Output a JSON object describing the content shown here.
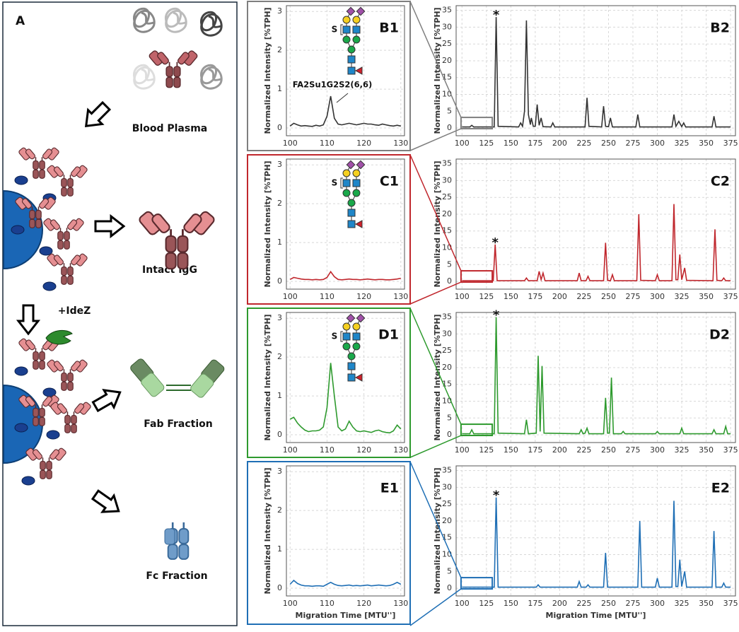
{
  "diagram": {
    "panel": "A",
    "labels": [
      "Blood Plasma",
      "Intact IgG",
      "+IdeZ",
      "Fab Fraction",
      "Fc Fraction"
    ]
  },
  "chart_data": [
    {
      "type": "line",
      "label": "B1",
      "ylabel": "Normalized Intensity [%TPH]",
      "frame_color": "#7f7f7f",
      "glycan": {
        "sulfate": "S",
        "name": "FA2Su1G2S2(6,6)"
      },
      "xlim": [
        99,
        131
      ],
      "ylim": [
        -0.2,
        3.15
      ],
      "xticks": [
        100,
        110,
        120,
        130
      ],
      "yticks": [
        0,
        1,
        2,
        3
      ],
      "grid": true,
      "x": [
        100,
        101,
        102,
        103,
        104,
        105,
        106,
        107,
        108,
        109,
        110,
        111,
        112,
        113,
        114,
        115,
        116,
        117,
        118,
        119,
        120,
        121,
        122,
        123,
        124,
        125,
        126,
        127,
        128,
        129,
        130
      ],
      "series": [
        {
          "color": "#333333",
          "values": [
            0.05,
            0.12,
            0.08,
            0.05,
            0.06,
            0.05,
            0.04,
            0.07,
            0.05,
            0.08,
            0.3,
            0.82,
            0.25,
            0.1,
            0.08,
            0.1,
            0.12,
            0.1,
            0.08,
            0.1,
            0.12,
            0.1,
            0.1,
            0.08,
            0.07,
            0.1,
            0.08,
            0.06,
            0.05,
            0.07,
            0.05
          ]
        }
      ]
    },
    {
      "type": "line",
      "label": "B2",
      "ylabel": "Normalized Intensity [%TPH]",
      "annotation": {
        "text": "*",
        "x": 135
      },
      "xlim": [
        94,
        380
      ],
      "ylim": [
        -2.3,
        36.4
      ],
      "xticks": [
        100,
        125,
        150,
        175,
        200,
        225,
        250,
        275,
        300,
        325,
        350,
        375
      ],
      "yticks": [
        0,
        5,
        10,
        15,
        20,
        25,
        30,
        35
      ],
      "grid": true,
      "x": [
        100,
        108,
        110,
        112,
        133,
        135,
        137,
        158,
        160,
        162,
        164,
        166,
        168,
        170,
        171,
        173,
        175,
        177,
        179,
        181,
        183,
        191,
        193,
        195,
        226,
        228,
        230,
        243,
        245,
        247,
        250,
        252,
        254,
        278,
        280,
        282,
        315,
        317,
        319,
        322,
        325,
        327,
        329,
        356,
        358,
        360,
        375
      ],
      "series": [
        {
          "color": "#333333",
          "values": [
            0.3,
            0.3,
            0.8,
            0.3,
            0.3,
            33,
            0.5,
            0.3,
            1.5,
            0.5,
            5,
            32,
            4,
            1,
            3,
            0.5,
            0.5,
            7,
            0.8,
            3,
            0.4,
            0.3,
            1.5,
            0.3,
            0.3,
            9,
            0.5,
            0.3,
            6.5,
            0.5,
            0.4,
            3,
            0.3,
            0.3,
            4,
            0.3,
            0.3,
            4,
            0.5,
            2,
            0.4,
            1.5,
            0.3,
            0.3,
            3.5,
            0.3,
            0.3
          ]
        }
      ]
    },
    {
      "type": "line",
      "label": "C1",
      "ylabel": "Normalized Intensity [%TPH]",
      "frame_color": "#c0272d",
      "glycan": {
        "sulfate": "S"
      },
      "xlim": [
        99,
        131
      ],
      "ylim": [
        -0.2,
        3.15
      ],
      "xticks": [
        100,
        110,
        120,
        130
      ],
      "yticks": [
        0,
        1,
        2,
        3
      ],
      "grid": true,
      "x": [
        100,
        101,
        102,
        103,
        104,
        105,
        106,
        107,
        108,
        109,
        110,
        111,
        112,
        113,
        114,
        115,
        116,
        117,
        118,
        119,
        120,
        121,
        122,
        123,
        124,
        125,
        126,
        127,
        128,
        129,
        130
      ],
      "series": [
        {
          "color": "#c0272d",
          "values": [
            0.05,
            0.1,
            0.08,
            0.06,
            0.05,
            0.05,
            0.04,
            0.05,
            0.04,
            0.05,
            0.1,
            0.25,
            0.12,
            0.05,
            0.04,
            0.05,
            0.06,
            0.05,
            0.05,
            0.04,
            0.05,
            0.06,
            0.05,
            0.04,
            0.05,
            0.05,
            0.04,
            0.04,
            0.05,
            0.06,
            0.08
          ]
        }
      ]
    },
    {
      "type": "line",
      "label": "C2",
      "ylabel": "Normalized Intensity [%TPH]",
      "annotation": {
        "text": "*",
        "x": 134
      },
      "xlim": [
        94,
        380
      ],
      "ylim": [
        -2.3,
        36.4
      ],
      "xticks": [
        100,
        125,
        150,
        175,
        200,
        225,
        250,
        275,
        300,
        325,
        350,
        375
      ],
      "yticks": [
        0,
        5,
        10,
        15,
        20,
        25,
        30,
        35
      ],
      "grid": true,
      "x": [
        100,
        132,
        134,
        136,
        164,
        166,
        168,
        177,
        179,
        181,
        183,
        185,
        218,
        220,
        222,
        227,
        229,
        231,
        245,
        247,
        249,
        252,
        254,
        256,
        279,
        281,
        283,
        298,
        300,
        302,
        315,
        317,
        319,
        321,
        323,
        325,
        328,
        330,
        357,
        359,
        361,
        366,
        368,
        370,
        375
      ],
      "series": [
        {
          "color": "#c0272d",
          "values": [
            0.2,
            0.2,
            11,
            0.2,
            0.2,
            1,
            0.2,
            0.2,
            3,
            0.5,
            2.5,
            0.2,
            0.2,
            2.5,
            0.2,
            0.2,
            1.5,
            0.2,
            0.2,
            11.5,
            0.3,
            0.2,
            2,
            0.2,
            0.2,
            20,
            0.3,
            0.2,
            2,
            0.2,
            0.2,
            23,
            0.5,
            0.5,
            8,
            0.5,
            4,
            0.3,
            0.2,
            15.5,
            0.3,
            0.2,
            1,
            0.2,
            0.2
          ]
        }
      ]
    },
    {
      "type": "line",
      "label": "D1",
      "ylabel": "Normalized Intensity [%TPH]",
      "frame_color": "#2e9a2e",
      "glycan": {
        "sulfate": "S"
      },
      "xlim": [
        99,
        131
      ],
      "ylim": [
        -0.2,
        3.15
      ],
      "xticks": [
        100,
        110,
        120,
        130
      ],
      "yticks": [
        0,
        1,
        2,
        3
      ],
      "grid": true,
      "x": [
        100,
        101,
        102,
        103,
        104,
        105,
        106,
        107,
        108,
        109,
        110,
        111,
        112,
        113,
        114,
        115,
        116,
        117,
        118,
        119,
        120,
        121,
        122,
        123,
        124,
        125,
        126,
        127,
        128,
        129,
        130
      ],
      "series": [
        {
          "color": "#2e9a2e",
          "values": [
            0.4,
            0.45,
            0.3,
            0.2,
            0.12,
            0.08,
            0.1,
            0.1,
            0.12,
            0.2,
            0.7,
            1.85,
            1.0,
            0.2,
            0.1,
            0.15,
            0.35,
            0.2,
            0.1,
            0.08,
            0.1,
            0.08,
            0.06,
            0.1,
            0.12,
            0.08,
            0.06,
            0.05,
            0.1,
            0.25,
            0.15
          ]
        }
      ]
    },
    {
      "type": "line",
      "label": "D2",
      "ylabel": "Normalized Intensity [%TPH]",
      "annotation": {
        "text": "*",
        "x": 135
      },
      "xlim": [
        94,
        380
      ],
      "ylim": [
        -2.3,
        36.4
      ],
      "xticks": [
        100,
        125,
        150,
        175,
        200,
        225,
        250,
        275,
        300,
        325,
        350,
        375
      ],
      "yticks": [
        0,
        5,
        10,
        15,
        20,
        25,
        30,
        35
      ],
      "grid": true,
      "x": [
        100,
        108,
        110,
        112,
        133,
        135,
        137,
        164,
        166,
        168,
        176,
        178,
        180,
        182,
        184,
        220,
        222,
        224,
        226,
        228,
        230,
        245,
        247,
        249,
        251,
        253,
        255,
        263,
        265,
        267,
        298,
        300,
        302,
        323,
        325,
        327,
        356,
        358,
        360,
        368,
        370,
        372,
        375
      ],
      "series": [
        {
          "color": "#2e9a2e",
          "values": [
            0.3,
            0.3,
            1.5,
            0.3,
            0.3,
            35,
            0.5,
            0.3,
            4.5,
            0.3,
            0.5,
            23.5,
            1,
            20.5,
            0.5,
            0.3,
            1.5,
            0.3,
            0.5,
            2,
            0.3,
            0.3,
            11,
            0.5,
            0.5,
            17,
            0.3,
            0.3,
            1,
            0.3,
            0.3,
            1,
            0.3,
            0.3,
            2,
            0.3,
            0.3,
            1.5,
            0.3,
            0.3,
            2.5,
            0.3,
            0.3
          ]
        }
      ]
    },
    {
      "type": "line",
      "label": "E1",
      "ylabel": "Normalized Intensity [%TPH]",
      "xlabel": "Migration Time [MTU'']",
      "frame_color": "#1f6fb5",
      "xlim": [
        99,
        131
      ],
      "ylim": [
        -0.2,
        3.15
      ],
      "xticks": [
        100,
        110,
        120,
        130
      ],
      "yticks": [
        0,
        1,
        2,
        3
      ],
      "grid": true,
      "x": [
        100,
        101,
        102,
        103,
        104,
        105,
        106,
        107,
        108,
        109,
        110,
        111,
        112,
        113,
        114,
        115,
        116,
        117,
        118,
        119,
        120,
        121,
        122,
        123,
        124,
        125,
        126,
        127,
        128,
        129,
        130
      ],
      "series": [
        {
          "color": "#1f6fb5",
          "values": [
            0.1,
            0.2,
            0.12,
            0.08,
            0.06,
            0.06,
            0.05,
            0.06,
            0.06,
            0.05,
            0.1,
            0.15,
            0.1,
            0.07,
            0.06,
            0.07,
            0.08,
            0.06,
            0.07,
            0.06,
            0.07,
            0.08,
            0.06,
            0.07,
            0.08,
            0.07,
            0.06,
            0.07,
            0.1,
            0.15,
            0.1
          ]
        }
      ]
    },
    {
      "type": "line",
      "label": "E2",
      "ylabel": "Normalized Intensity [%TPH]",
      "xlabel": "Migration Time [MTU'']",
      "annotation": {
        "text": "*",
        "x": 135
      },
      "xlim": [
        94,
        380
      ],
      "ylim": [
        -2.3,
        36.4
      ],
      "xticks": [
        100,
        125,
        150,
        175,
        200,
        225,
        250,
        275,
        300,
        325,
        350,
        375
      ],
      "yticks": [
        0,
        5,
        10,
        15,
        20,
        25,
        30,
        35
      ],
      "grid": true,
      "x": [
        100,
        133,
        135,
        137,
        176,
        178,
        180,
        218,
        220,
        222,
        227,
        229,
        231,
        245,
        247,
        249,
        280,
        282,
        284,
        298,
        300,
        302,
        315,
        317,
        319,
        321,
        323,
        325,
        328,
        330,
        356,
        358,
        360,
        366,
        368,
        370,
        375
      ],
      "series": [
        {
          "color": "#1f6fb5",
          "values": [
            0.3,
            0.3,
            27,
            0.3,
            0.3,
            1,
            0.3,
            0.3,
            2,
            0.3,
            0.3,
            1,
            0.3,
            0.3,
            10.5,
            0.3,
            0.3,
            20,
            0.3,
            0.3,
            3,
            0.3,
            0.3,
            26,
            0.5,
            0.5,
            8.5,
            0.5,
            5,
            0.3,
            0.3,
            17,
            0.3,
            0.3,
            1.5,
            0.3,
            0.3
          ]
        }
      ]
    }
  ]
}
